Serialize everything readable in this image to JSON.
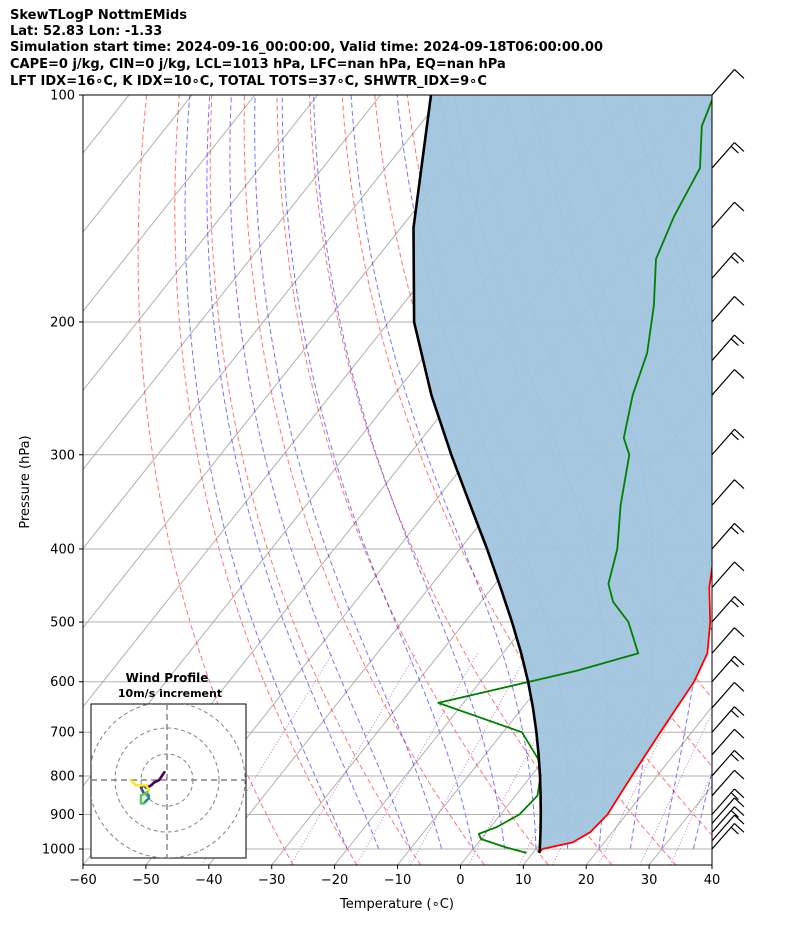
{
  "header": {
    "line1": "SkewTLogP NottmEMids",
    "line2": "Lat: 52.83   Lon: -1.33",
    "line3": "Simulation start time: 2024-09-16_00:00:00, Valid time: 2024-09-18T06:00:00.00",
    "line4": "CAPE=0 j/kg, CIN=0 j/kg, LCL=1013 hPa, LFC=nan hPa, EQ=nan hPa",
    "line5": "LFT IDX=16∘C, K IDX=10∘C, TOTAL TOTS=37∘C, SHWTR_IDX=9∘C"
  },
  "chart_data": {
    "type": "line",
    "subtype": "skew-T log-P",
    "xlabel": "Temperature (∘C)",
    "ylabel": "Pressure (hPa)",
    "xlim": [
      -60,
      40
    ],
    "ylim": [
      1050,
      100
    ],
    "x_ticks": [
      -60,
      -50,
      -40,
      -30,
      -20,
      -10,
      0,
      10,
      20,
      30,
      40
    ],
    "y_ticks": [
      1000,
      900,
      800,
      700,
      600,
      500,
      400,
      300,
      200,
      100
    ],
    "y_scale": "log",
    "grid": true,
    "series": [
      {
        "color": "#ff0000",
        "points": [
          [
            1012,
            11
          ],
          [
            1000,
            11
          ],
          [
            980,
            15
          ],
          [
            950,
            16.5
          ],
          [
            900,
            17
          ],
          [
            850,
            16.5
          ],
          [
            800,
            16
          ],
          [
            700,
            15
          ],
          [
            650,
            14.5
          ],
          [
            600,
            14
          ],
          [
            550,
            12.5
          ],
          [
            500,
            9
          ],
          [
            450,
            4.5
          ],
          [
            400,
            0.5
          ],
          [
            350,
            -3
          ],
          [
            330,
            -4.5
          ],
          [
            300,
            -7.5
          ],
          [
            250,
            -17
          ],
          [
            225,
            -22
          ],
          [
            200,
            -27
          ],
          [
            180,
            -32
          ],
          [
            160,
            -37
          ],
          [
            140,
            -43
          ],
          [
            125,
            -46
          ],
          [
            112,
            -50
          ],
          [
            100,
            -54
          ]
        ]
      },
      {
        "color": "#008000",
        "points": [
          [
            1012,
            9
          ],
          [
            995,
            5
          ],
          [
            970,
            0
          ],
          [
            955,
            -1
          ],
          [
            935,
            1
          ],
          [
            900,
            3
          ],
          [
            850,
            3.5
          ],
          [
            800,
            1.5
          ],
          [
            760,
            -1
          ],
          [
            700,
            -7
          ],
          [
            640,
            -24
          ],
          [
            580,
            -6
          ],
          [
            550,
            1.5
          ],
          [
            500,
            -4
          ],
          [
            470,
            -9
          ],
          [
            445,
            -12
          ],
          [
            400,
            -15
          ],
          [
            350,
            -20
          ],
          [
            300,
            -25
          ],
          [
            285,
            -28
          ],
          [
            250,
            -32
          ],
          [
            220,
            -35
          ],
          [
            190,
            -40
          ],
          [
            165,
            -45.5
          ],
          [
            145,
            -48
          ],
          [
            125,
            -50
          ],
          [
            110,
            -55
          ],
          [
            100,
            -57
          ]
        ]
      },
      {
        "color": "#000000",
        "points": [
          [
            1012,
            11
          ],
          [
            1000,
            10.6
          ],
          [
            950,
            8.6
          ],
          [
            900,
            6.4
          ],
          [
            850,
            4.0
          ],
          [
            800,
            1.4
          ],
          [
            750,
            -1.5
          ],
          [
            700,
            -4.7
          ],
          [
            650,
            -8.3
          ],
          [
            600,
            -12.4
          ],
          [
            550,
            -17.1
          ],
          [
            500,
            -22.5
          ],
          [
            450,
            -28.7
          ],
          [
            400,
            -35.7
          ],
          [
            350,
            -43.9
          ],
          [
            300,
            -53.3
          ],
          [
            250,
            -64
          ],
          [
            200,
            -76
          ],
          [
            150,
            -88
          ],
          [
            100,
            -102
          ]
        ]
      }
    ],
    "shading": {
      "color": "#a0c4de",
      "between": "temperature and parcel profile"
    },
    "reference_lines": {
      "dry_adiabats": "red dashed",
      "moist_adiabats": "blue dashed",
      "mixing_ratio": "purple dotted",
      "isotherms": "gray solid"
    },
    "wind_barbs": [
      {
        "pressure": 1000
      },
      {
        "pressure": 975
      },
      {
        "pressure": 950
      },
      {
        "pressure": 925
      },
      {
        "pressure": 900
      },
      {
        "pressure": 850
      },
      {
        "pressure": 800
      },
      {
        "pressure": 750
      },
      {
        "pressure": 700
      },
      {
        "pressure": 650
      },
      {
        "pressure": 600
      },
      {
        "pressure": 550
      },
      {
        "pressure": 500
      },
      {
        "pressure": 450
      },
      {
        "pressure": 400
      },
      {
        "pressure": 350
      },
      {
        "pressure": 300
      },
      {
        "pressure": 250
      },
      {
        "pressure": 225
      },
      {
        "pressure": 200
      },
      {
        "pressure": 175
      },
      {
        "pressure": 150
      },
      {
        "pressure": 125
      },
      {
        "pressure": 100
      }
    ],
    "inset": {
      "title": "Wind Profile",
      "subtitle": "10m/s increment",
      "type": "hodograph",
      "ring_step_ms": 10,
      "colormap": "viridis",
      "points": [
        [
          -1,
          3
        ],
        [
          -3,
          0
        ],
        [
          -5,
          -1
        ],
        [
          -6,
          -2
        ],
        [
          -8,
          -3
        ],
        [
          -9,
          -2
        ],
        [
          -10,
          -3
        ],
        [
          -9,
          -5
        ],
        [
          -8,
          -5
        ],
        [
          -7,
          -6
        ],
        [
          -7,
          -7
        ],
        [
          -8,
          -8
        ],
        [
          -9,
          -9
        ],
        [
          -10,
          -9
        ],
        [
          -10,
          -6
        ],
        [
          -8,
          -5
        ],
        [
          -7,
          -4
        ],
        [
          -8,
          -2
        ],
        [
          -12,
          -2
        ],
        [
          -14,
          0
        ]
      ]
    }
  }
}
